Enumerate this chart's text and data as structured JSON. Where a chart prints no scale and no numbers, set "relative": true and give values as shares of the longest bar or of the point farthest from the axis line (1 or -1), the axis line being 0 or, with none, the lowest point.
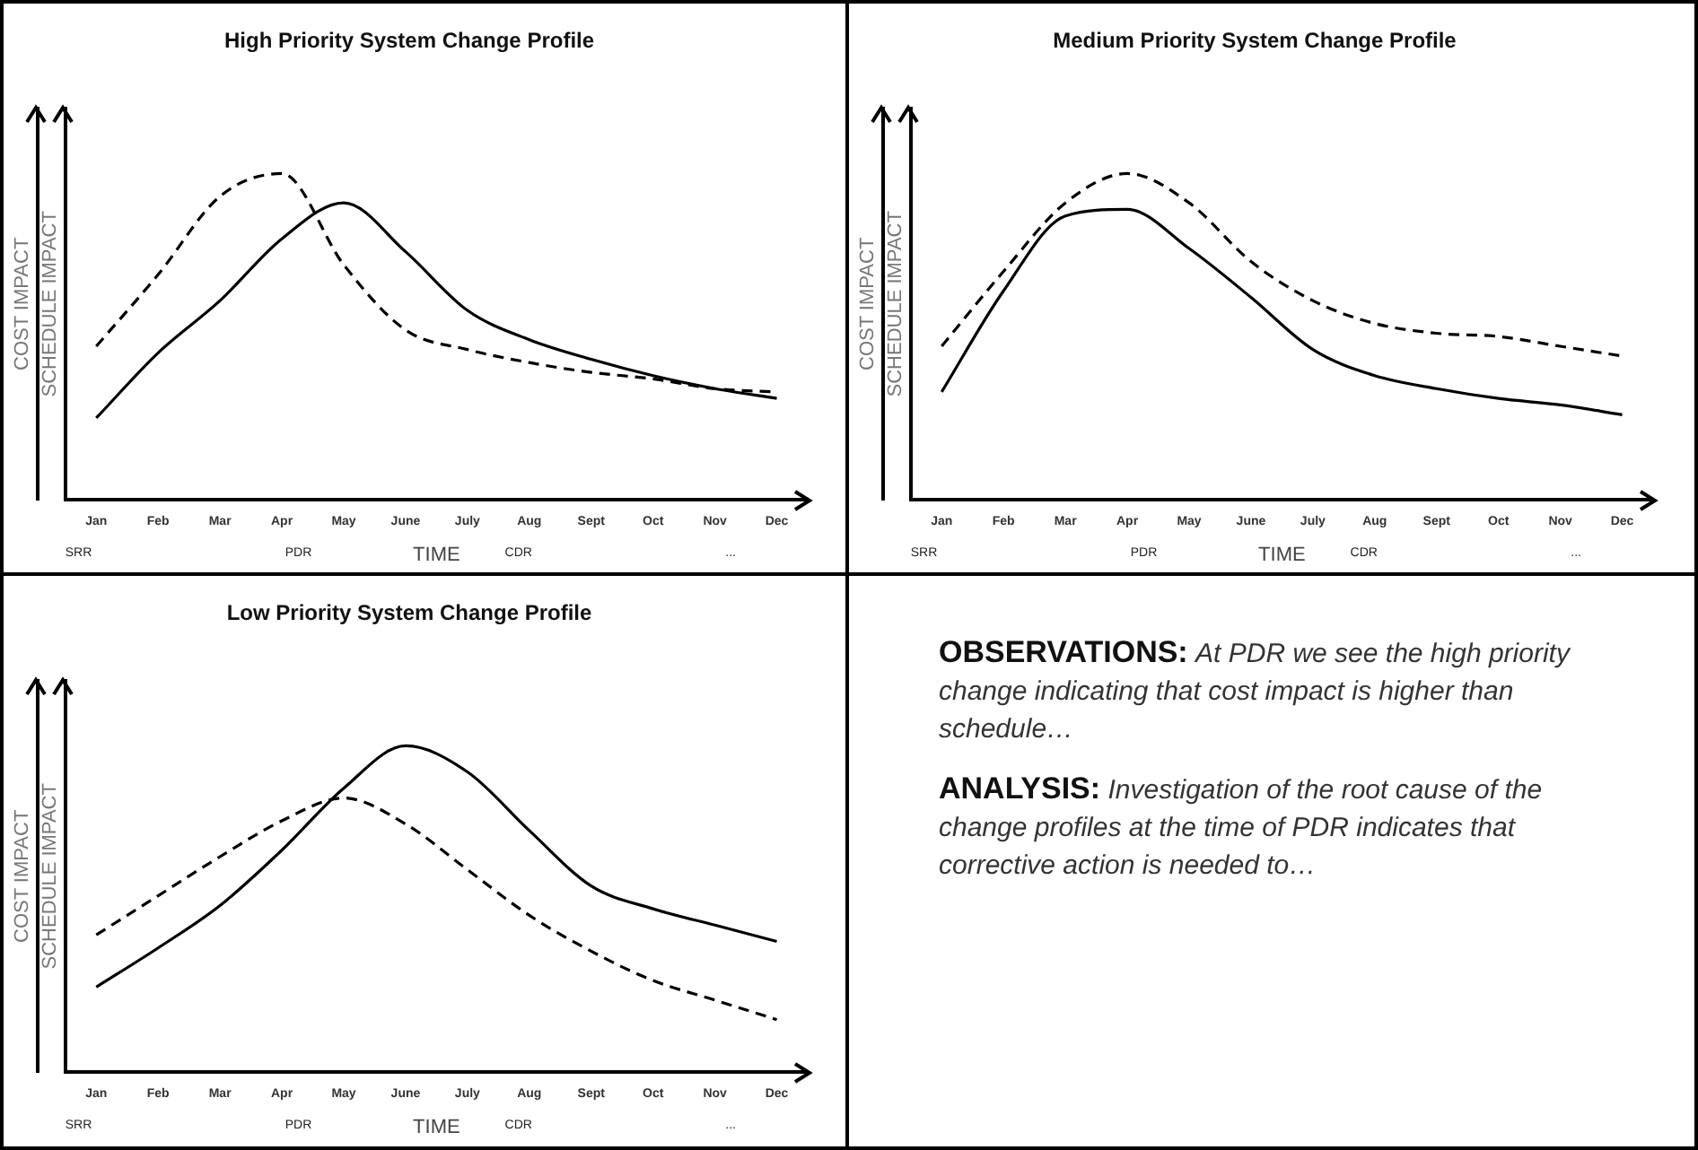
{
  "chart_data": [
    {
      "type": "line",
      "title": "High Priority System Change Profile",
      "xlabel": "TIME",
      "ylabel": "COST IMPACT",
      "y2label": "SCHEDULE IMPACT",
      "relative": true,
      "grid": false,
      "legend": false,
      "marker": "none",
      "categories": [
        "Jan",
        "Feb",
        "Mar",
        "Apr",
        "May",
        "June",
        "July",
        "Aug",
        "Sept",
        "Oct",
        "Nov",
        "Dec"
      ],
      "series": [
        {
          "color": "#000000",
          "line_style": "dashed",
          "values": [
            0.47,
            0.69,
            0.93,
            1.0,
            0.72,
            0.52,
            0.46,
            0.42,
            0.39,
            0.37,
            0.34,
            0.33
          ]
        },
        {
          "color": "#000000",
          "line_style": "solid",
          "values": [
            0.25,
            0.45,
            0.61,
            0.8,
            0.91,
            0.76,
            0.58,
            0.49,
            0.43,
            0.38,
            0.34,
            0.31
          ]
        }
      ],
      "annotations": [
        "SRR",
        "PDR",
        "CDR",
        "..."
      ]
    },
    {
      "type": "line",
      "title": "Medium Priority System Change Profile",
      "xlabel": "TIME",
      "ylabel": "COST IMPACT",
      "y2label": "SCHEDULE IMPACT",
      "relative": true,
      "grid": false,
      "legend": false,
      "marker": "none",
      "categories": [
        "Jan",
        "Feb",
        "Mar",
        "Apr",
        "May",
        "June",
        "July",
        "Aug",
        "Sept",
        "Oct",
        "Nov",
        "Dec"
      ],
      "series": [
        {
          "color": "#000000",
          "line_style": "dashed",
          "values": [
            0.47,
            0.7,
            0.91,
            1.0,
            0.91,
            0.73,
            0.61,
            0.54,
            0.51,
            0.5,
            0.47,
            0.44
          ]
        },
        {
          "color": "#000000",
          "line_style": "solid",
          "values": [
            0.33,
            0.64,
            0.87,
            0.89,
            0.77,
            0.62,
            0.46,
            0.38,
            0.34,
            0.31,
            0.29,
            0.26
          ]
        }
      ],
      "annotations": [
        "SRR",
        "PDR",
        "CDR",
        "..."
      ]
    },
    {
      "type": "line",
      "title": "Low Priority System Change Profile",
      "xlabel": "TIME",
      "ylabel": "COST IMPACT",
      "y2label": "SCHEDULE IMPACT",
      "relative": true,
      "grid": false,
      "legend": false,
      "marker": "none",
      "categories": [
        "Jan",
        "Feb",
        "Mar",
        "Apr",
        "May",
        "June",
        "July",
        "Aug",
        "Sept",
        "Oct",
        "Nov",
        "Dec"
      ],
      "series": [
        {
          "color": "#000000",
          "line_style": "dashed",
          "values": [
            0.42,
            0.54,
            0.66,
            0.77,
            0.84,
            0.76,
            0.62,
            0.48,
            0.37,
            0.28,
            0.22,
            0.16
          ]
        },
        {
          "color": "#000000",
          "line_style": "solid",
          "values": [
            0.26,
            0.38,
            0.51,
            0.68,
            0.87,
            1.0,
            0.92,
            0.74,
            0.57,
            0.5,
            0.45,
            0.4
          ]
        }
      ],
      "annotations": [
        "SRR",
        "PDR",
        "CDR",
        "..."
      ]
    },
    {
      "type": "other",
      "annotations": [
        "OBSERVATIONS:",
        "At PDR we see the high priority change indicating that cost impact is higher than schedule…",
        "ANALYSIS:",
        "Investigation of the root cause of the change profiles at the time of PDR indicates that corrective action is needed to…"
      ]
    }
  ]
}
